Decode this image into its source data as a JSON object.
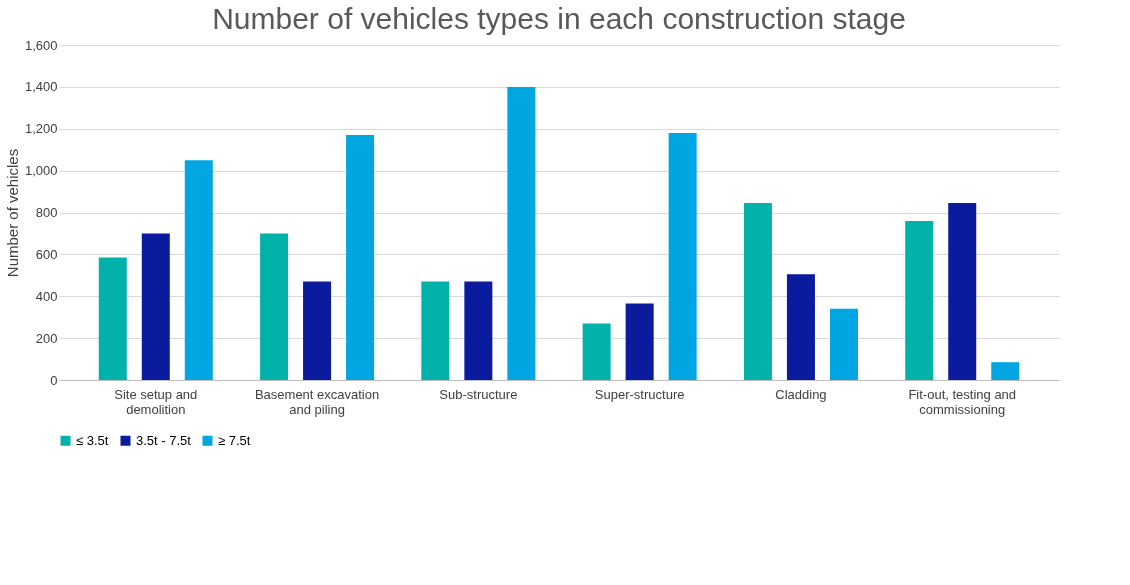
{
  "chart_data": {
    "type": "bar",
    "title": "Number of vehicles types in each construction stage",
    "ylabel": "Number of vehicles",
    "categories": [
      "Site setup and demolition",
      "Basement excavation and piling",
      "Sub-structure",
      "Super-structure",
      "Cladding",
      "Fit-out, testing and commissioning"
    ],
    "series": [
      {
        "name": "≤ 3.5t",
        "color": "#00b2a9",
        "values": [
          585,
          700,
          470,
          270,
          845,
          760
        ]
      },
      {
        "name": "3.5t - 7.5t",
        "color": "#0a1b9e",
        "values": [
          700,
          470,
          470,
          365,
          505,
          845
        ]
      },
      {
        "name": "≥ 7.5t",
        "color": "#00a6e2",
        "values": [
          1050,
          1170,
          1400,
          1180,
          340,
          85
        ]
      }
    ],
    "ylim": [
      0,
      1600
    ],
    "yticks": [
      {
        "value": 0,
        "label": "0"
      },
      {
        "value": 200,
        "label": "200"
      },
      {
        "value": 400,
        "label": "400"
      },
      {
        "value": 600,
        "label": "600"
      },
      {
        "value": 800,
        "label": "800"
      },
      {
        "value": 1000,
        "label": "1,000"
      },
      {
        "value": 1200,
        "label": "1,200"
      },
      {
        "value": 1400,
        "label": "1,400"
      },
      {
        "value": 1600,
        "label": "1,600"
      }
    ],
    "grid": "y",
    "legend": "bottom"
  }
}
